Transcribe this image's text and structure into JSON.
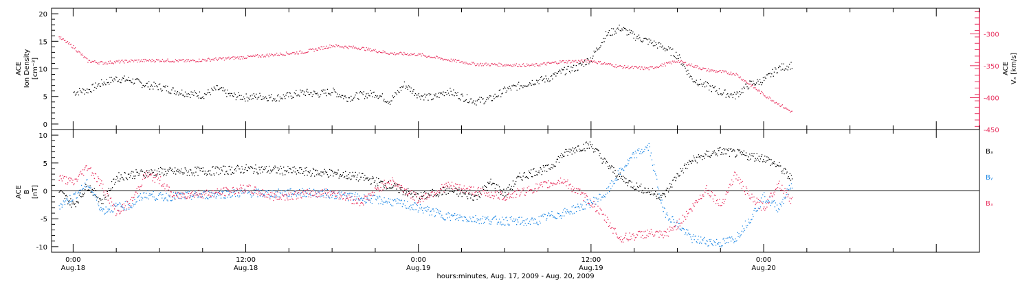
{
  "chart_data": [
    {
      "type": "scatter",
      "panel": "top",
      "left_axis_label": [
        "ACE",
        "Ion Density",
        "[cm⁻³]"
      ],
      "right_axis_label": [
        "ACE",
        "Vₓ [km/s]"
      ],
      "y_left_range": [
        -1,
        21
      ],
      "y_left_ticks": [
        "0",
        "5",
        "10",
        "15",
        "20"
      ],
      "y_right_range": [
        -450,
        -260
      ],
      "y_right_ticks": [
        "-300",
        "-350",
        "-400",
        "-450"
      ],
      "colors": {
        "density": "#000000",
        "vx": "#e8305e"
      },
      "series": [
        {
          "axis": "left",
          "color": "#000000",
          "points": [
            [
              0,
              5.8
            ],
            [
              1,
              6.2
            ],
            [
              2,
              7.5
            ],
            [
              3,
              8.3
            ],
            [
              4,
              8.0
            ],
            [
              5,
              7.2
            ],
            [
              6,
              6.8
            ],
            [
              7,
              6.1
            ],
            [
              8,
              5.6
            ],
            [
              9,
              5.3
            ],
            [
              10,
              6.5
            ],
            [
              11,
              5.2
            ],
            [
              12,
              4.9
            ],
            [
              13,
              5.1
            ],
            [
              14,
              4.8
            ],
            [
              15,
              5.2
            ],
            [
              16,
              5.8
            ],
            [
              17,
              5.5
            ],
            [
              18,
              6.0
            ],
            [
              19,
              4.8
            ],
            [
              20,
              5.3
            ],
            [
              21,
              5.6
            ],
            [
              22,
              4.2
            ],
            [
              23,
              7.2
            ],
            [
              24,
              5.3
            ],
            [
              25,
              4.8
            ],
            [
              26,
              6.1
            ],
            [
              27,
              5.0
            ],
            [
              28,
              4.2
            ],
            [
              29,
              4.6
            ],
            [
              30,
              6.2
            ],
            [
              31,
              7.0
            ],
            [
              32,
              7.8
            ],
            [
              33,
              8.3
            ],
            [
              34,
              9.6
            ],
            [
              35,
              10.3
            ],
            [
              36,
              12.0
            ],
            [
              37,
              16.2
            ],
            [
              38,
              17.5
            ],
            [
              39,
              16.0
            ],
            [
              40,
              15.0
            ],
            [
              41,
              14.0
            ],
            [
              42,
              12.5
            ],
            [
              43,
              8.2
            ],
            [
              44,
              7.0
            ],
            [
              45,
              5.8
            ],
            [
              46,
              5.2
            ],
            [
              47,
              7.3
            ],
            [
              48,
              8.0
            ],
            [
              49,
              10.2
            ],
            [
              50,
              10.8
            ]
          ]
        },
        {
          "axis": "right",
          "color": "#e8305e",
          "points": [
            [
              -1,
              -305
            ],
            [
              0,
              -320
            ],
            [
              1,
              -342
            ],
            [
              2,
              -345
            ],
            [
              4,
              -342
            ],
            [
              6,
              -341
            ],
            [
              8,
              -342
            ],
            [
              10,
              -339
            ],
            [
              12,
              -336
            ],
            [
              14,
              -332
            ],
            [
              16,
              -328
            ],
            [
              18,
              -318
            ],
            [
              20,
              -322
            ],
            [
              22,
              -330
            ],
            [
              24,
              -332
            ],
            [
              26,
              -340
            ],
            [
              28,
              -347
            ],
            [
              30,
              -348
            ],
            [
              32,
              -349
            ],
            [
              34,
              -343
            ],
            [
              36,
              -342
            ],
            [
              38,
              -351
            ],
            [
              40,
              -354
            ],
            [
              42,
              -342
            ],
            [
              44,
              -356
            ],
            [
              46,
              -362
            ],
            [
              48,
              -395
            ],
            [
              50,
              -423
            ]
          ]
        }
      ]
    },
    {
      "type": "scatter",
      "panel": "bottom",
      "left_axis_label": [
        "ACE",
        "B",
        "[nT]"
      ],
      "y_range": [
        -11,
        11
      ],
      "y_ticks": [
        "10",
        "5",
        "0",
        "-5",
        "-10"
      ],
      "legend": [
        {
          "label": "Bₓ",
          "color": "#000000"
        },
        {
          "label": "Bᵧ",
          "color": "#1e88e5"
        },
        {
          "label": "Bₓ",
          "color": "#e8305e"
        }
      ],
      "series": [
        {
          "color": "#000000",
          "points": [
            [
              -1,
              0
            ],
            [
              0,
              -2.5
            ],
            [
              1,
              1.0
            ],
            [
              2,
              -1.8
            ],
            [
              3,
              2.5
            ],
            [
              4,
              3.0
            ],
            [
              6,
              3.5
            ],
            [
              8,
              3.5
            ],
            [
              10,
              3.7
            ],
            [
              12,
              4.0
            ],
            [
              14,
              3.8
            ],
            [
              16,
              3.5
            ],
            [
              18,
              3.2
            ],
            [
              20,
              2.5
            ],
            [
              22,
              1.0
            ],
            [
              24,
              -1.0
            ],
            [
              26,
              0.2
            ],
            [
              28,
              -1.0
            ],
            [
              29,
              1.5
            ],
            [
              30,
              -0.5
            ],
            [
              31,
              2.5
            ],
            [
              32,
              3.5
            ],
            [
              33,
              4.0
            ],
            [
              34,
              6.5
            ],
            [
              35,
              7.8
            ],
            [
              36,
              8.3
            ],
            [
              37,
              5.0
            ],
            [
              38,
              2.5
            ],
            [
              39,
              1.0
            ],
            [
              40,
              0.0
            ],
            [
              41,
              -1.0
            ],
            [
              42,
              3.0
            ],
            [
              43,
              5.5
            ],
            [
              44,
              6.5
            ],
            [
              45,
              7.2
            ],
            [
              46,
              6.8
            ],
            [
              47,
              6.3
            ],
            [
              48,
              6.0
            ],
            [
              49,
              4.5
            ],
            [
              50,
              2.0
            ]
          ]
        },
        {
          "color": "#1e88e5",
          "points": [
            [
              -1,
              -2.5
            ],
            [
              0,
              -1.0
            ],
            [
              1,
              1.5
            ],
            [
              2,
              -3.5
            ],
            [
              3,
              -2.8
            ],
            [
              4,
              -2.5
            ],
            [
              5,
              -0.5
            ],
            [
              6,
              -1.0
            ],
            [
              8,
              -0.8
            ],
            [
              10,
              -0.5
            ],
            [
              12,
              -0.3
            ],
            [
              14,
              -0.4
            ],
            [
              16,
              -0.2
            ],
            [
              18,
              -0.5
            ],
            [
              20,
              -1.2
            ],
            [
              22,
              -1.8
            ],
            [
              24,
              -3.0
            ],
            [
              26,
              -4.5
            ],
            [
              28,
              -5.0
            ],
            [
              30,
              -5.3
            ],
            [
              32,
              -5.5
            ],
            [
              33,
              -4.5
            ],
            [
              34,
              -4.0
            ],
            [
              35,
              -3.0
            ],
            [
              36,
              -2.0
            ],
            [
              37,
              -0.5
            ],
            [
              38,
              3.5
            ],
            [
              39,
              6.5
            ],
            [
              40,
              8.0
            ],
            [
              41,
              -3.5
            ],
            [
              42,
              -6.0
            ],
            [
              43,
              -8.5
            ],
            [
              44,
              -9.0
            ],
            [
              45,
              -9.3
            ],
            [
              46,
              -8.5
            ],
            [
              47,
              -5.0
            ],
            [
              48,
              -1.0
            ],
            [
              49,
              -3.0
            ],
            [
              50,
              1.5
            ]
          ]
        },
        {
          "color": "#e8305e",
          "points": [
            [
              -1,
              2.5
            ],
            [
              0,
              1.5
            ],
            [
              1,
              4.5
            ],
            [
              2,
              1.0
            ],
            [
              3,
              -3.8
            ],
            [
              4,
              -2.0
            ],
            [
              5,
              3.0
            ],
            [
              6,
              2.0
            ],
            [
              7,
              -1.0
            ],
            [
              8,
              -0.5
            ],
            [
              10,
              -0.3
            ],
            [
              12,
              0.5
            ],
            [
              14,
              -1.0
            ],
            [
              16,
              -0.5
            ],
            [
              18,
              -0.2
            ],
            [
              20,
              -2.0
            ],
            [
              22,
              2.0
            ],
            [
              24,
              -1.5
            ],
            [
              26,
              1.0
            ],
            [
              28,
              0.0
            ],
            [
              30,
              -1.0
            ],
            [
              32,
              0.5
            ],
            [
              34,
              2.0
            ],
            [
              36,
              -2.0
            ],
            [
              37,
              -5.0
            ],
            [
              38,
              -8.5
            ],
            [
              39,
              -8.0
            ],
            [
              40,
              -7.5
            ],
            [
              41,
              -8.0
            ],
            [
              42,
              -6.0
            ],
            [
              43,
              -3.0
            ],
            [
              44,
              0.5
            ],
            [
              45,
              -2.5
            ],
            [
              46,
              3.0
            ],
            [
              47,
              -1.0
            ],
            [
              48,
              -3.0
            ],
            [
              49,
              1.5
            ],
            [
              50,
              -2.0
            ]
          ]
        }
      ]
    }
  ],
  "x_axis": {
    "range_hours": [
      -1.5,
      63
    ],
    "major_ticks": [
      {
        "hour": 0,
        "time": "0:00",
        "date": "Aug.18"
      },
      {
        "hour": 12,
        "time": "12:00",
        "date": "Aug.18"
      },
      {
        "hour": 24,
        "time": "0:00",
        "date": "Aug.19"
      },
      {
        "hour": 36,
        "time": "12:00",
        "date": "Aug.19"
      },
      {
        "hour": 48,
        "time": "0:00",
        "date": "Aug.20"
      }
    ],
    "label": "hours:minutes, Aug. 17, 2009 - Aug. 20, 2009"
  }
}
